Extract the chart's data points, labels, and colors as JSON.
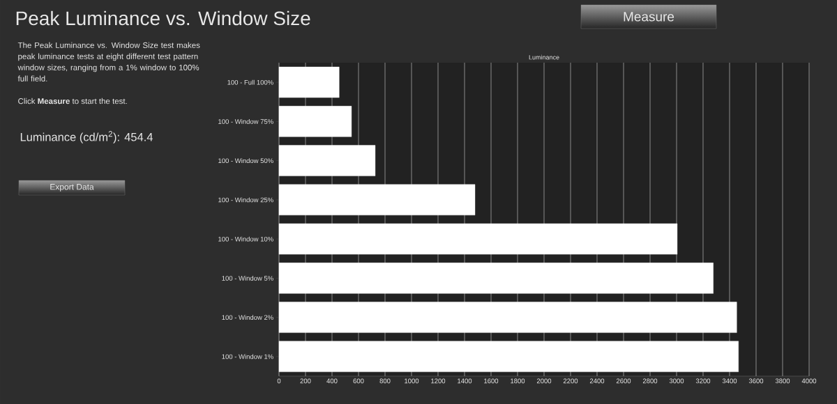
{
  "chart_data": {
    "type": "bar",
    "orientation": "horizontal",
    "title": "Peak Luminance vs. Window Size",
    "subtitle": "Luminance",
    "categories": [
      "100 - Full  100%",
      "100 - Window 75%",
      "100 - Window 50%",
      "100 - Window 25%",
      "100 - Window 10%",
      "100 - Window  5%",
      "100 - Window  2%",
      "100 - Window  1%"
    ],
    "values": [
      454,
      547,
      726,
      1479,
      3005,
      3277,
      3454,
      3467
    ],
    "color": "#ffffff",
    "xlim": [
      0,
      4000
    ],
    "xticks": [
      0,
      200,
      400,
      600,
      800,
      1000,
      1200,
      1400,
      1600,
      1800,
      2000,
      2200,
      2400,
      2600,
      2800,
      3000,
      3200,
      3400,
      3600,
      3800,
      4000
    ],
    "grid": "x",
    "annotations": [
      "The Peak Luminance vs. Window Size test makes peak luminance tests at eight different test pattern window sizes, ranging from a 1% window to 100% full field.",
      "Click **Measure** to start the test.",
      "Luminance (cd/m$^{2}$):  454.4",
      "Measure",
      "Export Data"
    ]
  }
}
